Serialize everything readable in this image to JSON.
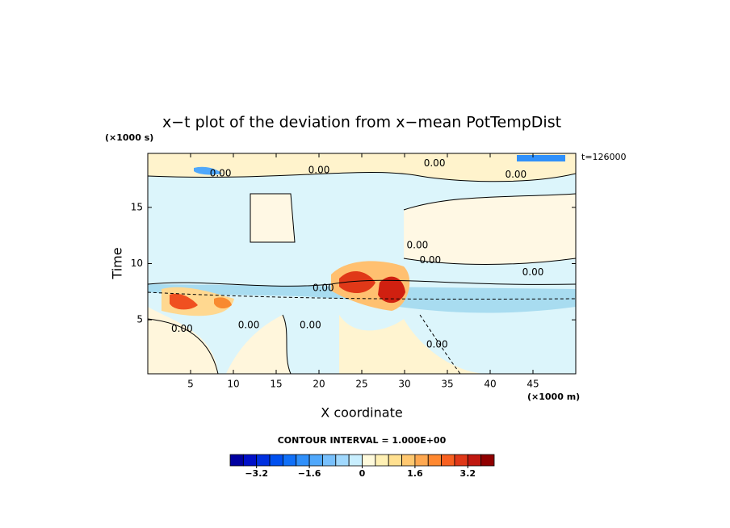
{
  "chart_data": {
    "type": "contour",
    "title": "x−t plot of the deviation from x−mean PotTempDist",
    "x_label": "X coordinate",
    "y_label": "Time",
    "x_unit": "(×1000 m)",
    "y_unit": "(×1000 s)",
    "time_label": "t=126000",
    "xlim": [
      0,
      50
    ],
    "xticks": [
      5,
      10,
      15,
      20,
      25,
      30,
      35,
      40,
      45
    ],
    "ylim": [
      0.2,
      19.8
    ],
    "yticks": [
      5,
      10,
      15
    ],
    "contour_interval": "CONTOUR INTERVAL = 1.000E+00",
    "contour_labels": [
      {
        "text": "0.00",
        "x": 8.5,
        "y": 18.0
      },
      {
        "text": "0.00",
        "x": 20.0,
        "y": 18.3
      },
      {
        "text": "0.00",
        "x": 33.5,
        "y": 18.9
      },
      {
        "text": "0.00",
        "x": 43.0,
        "y": 17.9
      },
      {
        "text": "0.00",
        "x": 31.5,
        "y": 11.6
      },
      {
        "text": "0.00",
        "x": 33.0,
        "y": 10.3
      },
      {
        "text": "0.00",
        "x": 45.0,
        "y": 9.2
      },
      {
        "text": "0.00",
        "x": 20.5,
        "y": 7.8
      },
      {
        "text": "0.00",
        "x": 4.0,
        "y": 4.2
      },
      {
        "text": "0.00",
        "x": 11.8,
        "y": 4.5
      },
      {
        "text": "0.00",
        "x": 19.0,
        "y": 4.5
      },
      {
        "text": "0.00",
        "x": 33.8,
        "y": 2.8
      }
    ],
    "colorbar": {
      "lim": [
        -4,
        4
      ],
      "ticks": [
        {
          "value": -3.2,
          "label": "−3.2"
        },
        {
          "value": -1.6,
          "label": "−1.6"
        },
        0,
        1.6,
        3.2
      ],
      "colors": [
        "#0000a0",
        "#0010c8",
        "#0030e0",
        "#0050f0",
        "#1070f8",
        "#3090fa",
        "#50a8fb",
        "#78c0fc",
        "#a0d8fd",
        "#c8eefe",
        "#fffadc",
        "#fff0b4",
        "#ffe090",
        "#ffc870",
        "#ffa850",
        "#ff8830",
        "#f86020",
        "#e03818",
        "#c01810",
        "#900000"
      ]
    }
  }
}
